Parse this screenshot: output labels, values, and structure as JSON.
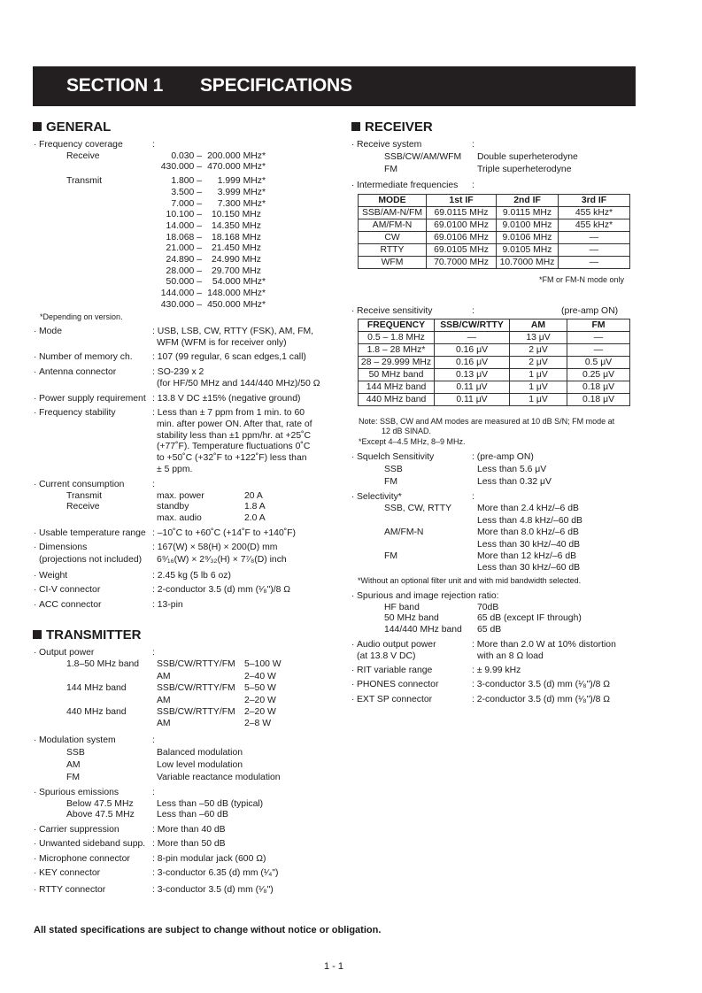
{
  "header": {
    "section": "SECTION 1",
    "title": "SPECIFICATIONS"
  },
  "general": {
    "heading": "GENERAL",
    "items": [
      {
        "rows": [
          {
            "k": "Frequency coverage",
            "v": ":"
          },
          {
            "k": "Receive",
            "r": [
              "0.030 –",
              "200.000 MHz*"
            ]
          },
          {
            "r": [
              "430.000 –",
              "470.000 MHz*"
            ]
          },
          {
            "k": "Transmit",
            "r": [
              "1.800 –",
              "1.999 MHz*"
            ]
          },
          {
            "r": [
              "3.500 –",
              "3.999 MHz*"
            ]
          },
          {
            "r": [
              "7.000 –",
              "7.300 MHz*"
            ]
          },
          {
            "r": [
              "10.100 –",
              "10.150 MHz"
            ]
          },
          {
            "r": [
              "14.000 –",
              "14.350 MHz"
            ]
          },
          {
            "r": [
              "18.068 –",
              "18.168 MHz"
            ]
          },
          {
            "r": [
              "21.000 –",
              "21.450 MHz"
            ]
          },
          {
            "r": [
              "24.890 –",
              "24.990 MHz"
            ]
          },
          {
            "r": [
              "28.000 –",
              "29.700 MHz"
            ]
          },
          {
            "r": [
              "50.000 –",
              "54.000 MHz*"
            ]
          },
          {
            "r": [
              "144.000 –",
              "148.000 MHz*"
            ]
          },
          {
            "r": [
              "430.000 –",
              "450.000 MHz*"
            ]
          },
          {
            "note": "*Depending on version."
          }
        ]
      },
      {
        "rows": [
          {
            "k": "Mode",
            "v": ": USB, LSB, CW, RTTY (FSK), AM, FM,"
          },
          {
            "v": "WFM (WFM is for receiver only)"
          }
        ]
      },
      {
        "rows": [
          {
            "k": "Number of memory ch.",
            "v": ": 107 (99 regular, 6 scan edges,1 call)"
          }
        ]
      },
      {
        "rows": [
          {
            "k": "Antenna connector",
            "v": ": SO-239 x 2"
          },
          {
            "v": "(for HF/50 MHz and 144/440 MHz)/50 Ω"
          }
        ]
      },
      {
        "rows": [
          {
            "k": "Power supply requirement",
            "v": ": 13.8 V DC ±15% (negative ground)"
          }
        ]
      },
      {
        "rows": [
          {
            "k": "Frequency stability",
            "v": ": Less than ± 7 ppm from 1 min. to 60"
          },
          {
            "v": "min. after power ON. After that, rate of"
          },
          {
            "v": "stability less than ±1 ppm/hr. at +25˚C"
          },
          {
            "v": "(+77˚F). Temperature fluctuations 0˚C"
          },
          {
            "v": "to +50˚C (+32˚F to +122˚F) less than"
          },
          {
            "v": "± 5 ppm."
          }
        ]
      },
      {
        "rows": [
          {
            "k": "Current consumption",
            "v": ":"
          },
          {
            "k": "Transmit",
            "v": "max. power",
            "v2": "20 A"
          },
          {
            "k": "Receive",
            "v": "standby",
            "v2": "1.8 A"
          },
          {
            "v": "max. audio",
            "v2": "2.0 A"
          }
        ]
      },
      {
        "rows": [
          {
            "k": "Usable temperature range",
            "v": ": –10˚C to +60˚C (+14˚F to +140˚F)"
          }
        ]
      },
      {
        "rows": [
          {
            "k": "Dimensions",
            "v": ": 167(W) × 58(H) × 200(D) mm"
          },
          {
            "k": "(projections not included)",
            "main": true,
            "v": "6⁹⁄₁₆(W) × 2⁹⁄₃₂(H) × 7⁷⁄₈(D) inch"
          }
        ]
      },
      {
        "rows": [
          {
            "k": "Weight",
            "v": ": 2.45 kg (5 lb 6 oz)"
          }
        ]
      },
      {
        "rows": [
          {
            "k": "CI-V connector",
            "v": ": 2-conductor 3.5 (d) mm (¹⁄₈\")/8 Ω"
          }
        ]
      },
      {
        "rows": [
          {
            "k": "ACC connector",
            "v": ": 13-pin"
          }
        ]
      }
    ]
  },
  "transmitter": {
    "heading": "TRANSMITTER",
    "items": [
      {
        "rows": [
          {
            "k": "Output power",
            "v": ":"
          },
          {
            "k": "1.8–50 MHz band",
            "v": "SSB/CW/RTTY/FM",
            "v2": "5–100 W"
          },
          {
            "v": "AM",
            "v2": "2–40 W"
          },
          {
            "k": "144 MHz band",
            "v": "SSB/CW/RTTY/FM",
            "v2": "5–50 W"
          },
          {
            "v": "AM",
            "v2": "2–20 W"
          },
          {
            "k": "440 MHz band",
            "v": "SSB/CW/RTTY/FM",
            "v2": "2–20 W"
          },
          {
            "v": "AM",
            "v2": "2–8 W"
          }
        ]
      },
      {
        "rows": [
          {
            "k": "Modulation system",
            "v": ":"
          },
          {
            "k": "SSB",
            "v": "Balanced modulation"
          },
          {
            "k": "AM",
            "v": "Low level modulation"
          },
          {
            "k": "FM",
            "v": "Variable reactance modulation"
          }
        ]
      },
      {
        "rows": [
          {
            "k": "Spurious emissions",
            "v": ":"
          },
          {
            "k": "Below 47.5 MHz",
            "v": "Less than –50 dB (typical)"
          },
          {
            "k": "Above 47.5 MHz",
            "v": "Less than –60 dB"
          }
        ]
      },
      {
        "rows": [
          {
            "k": "Carrier suppression",
            "v": ": More than 40 dB"
          }
        ]
      },
      {
        "rows": [
          {
            "k": "Unwanted sideband supp.",
            "v": ": More than 50 dB"
          }
        ]
      },
      {
        "rows": [
          {
            "k": "Microphone connector",
            "v": ": 8-pin modular jack (600 Ω)"
          }
        ]
      },
      {
        "rows": [
          {
            "k": "KEY connector",
            "v": ": 3-conductor 6.35 (d) mm (¹⁄₄\")"
          }
        ]
      },
      {
        "rows": [
          {
            "k": "RTTY connector",
            "v": ": 3-conductor 3.5 (d) mm (¹⁄₈\")"
          }
        ]
      }
    ]
  },
  "receiver": {
    "heading": "RECEIVER",
    "items_a": [
      {
        "rows": [
          {
            "k": "Receive system",
            "v": ":"
          },
          {
            "k": "SSB/CW/AM/WFM",
            "v": "Double superheterodyne"
          },
          {
            "k": "FM",
            "v": "Triple superheterodyne"
          }
        ]
      },
      {
        "rows": [
          {
            "k": "Intermediate frequencies",
            "v": ":"
          }
        ]
      },
      {
        "rows": [
          {
            "k": "Receive sensitivity",
            "v": ":",
            "v3": "(pre-amp ON)"
          }
        ]
      }
    ],
    "if_table": {
      "headers": [
        "MODE",
        "1st IF",
        "2nd IF",
        "3rd IF"
      ],
      "rows": [
        [
          "SSB/AM-N/FM",
          "69.0115 MHz",
          "9.0115 MHz",
          "455 kHz*"
        ],
        [
          "AM/FM-N",
          "69.0100 MHz",
          "9.0100 MHz",
          "455 kHz*"
        ],
        [
          "CW",
          "69.0106 MHz",
          "9.0106 MHz",
          "—"
        ],
        [
          "RTTY",
          "69.0105 MHz",
          "9.0105 MHz",
          "—"
        ],
        [
          "WFM",
          "70.7000 MHz",
          "10.7000 MHz",
          "—"
        ]
      ],
      "note": "*FM or FM-N mode only"
    },
    "sens_table": {
      "headers": [
        "FREQUENCY",
        "SSB/CW/RTTY",
        "AM",
        "FM"
      ],
      "rows": [
        [
          "0.5 – 1.8 MHz",
          "—",
          "13 μV",
          "—"
        ],
        [
          "1.8 – 28 MHz*",
          "0.16 μV",
          "2 μV",
          "—"
        ],
        [
          "28 – 29.999 MHz",
          "0.16 μV",
          "2 μV",
          "0.5 μV"
        ],
        [
          "50 MHz band",
          "0.13 μV",
          "1 μV",
          "0.25 μV"
        ],
        [
          "144 MHz band",
          "0.11 μV",
          "1 μV",
          "0.18 μV"
        ],
        [
          "440 MHz band",
          "0.11 μV",
          "1 μV",
          "0.18 μV"
        ]
      ],
      "notes": [
        "Note: SSB, CW and AM modes are measured at 10 dB S/N; FM mode at",
        "12 dB SINAD.",
        "*Except 4–4.5 MHz, 8–9 MHz."
      ]
    },
    "items_b": [
      {
        "rows": [
          {
            "k": "Squelch Sensitivity",
            "v": ": (pre-amp ON)"
          },
          {
            "k": "SSB",
            "v": "Less than 5.6 μV"
          },
          {
            "k": "FM",
            "v": "Less than 0.32 μV"
          }
        ]
      },
      {
        "rows": [
          {
            "k": "Selectivity*",
            "v": ":"
          },
          {
            "k": "SSB, CW, RTTY",
            "v": "More than 2.4 kHz/–6 dB"
          },
          {
            "v": "Less than 4.8 kHz/–60 dB"
          },
          {
            "k": "AM/FM-N",
            "v": "More than 8.0 kHz/–6 dB"
          },
          {
            "v": "Less than 30 kHz/–40 dB"
          },
          {
            "k": "FM",
            "v": "More than 12 kHz/–6 dB"
          },
          {
            "v": "Less than 30 kHz/–60 dB"
          },
          {
            "note": "*Without an optional filter unit and with mid bandwidth selected."
          }
        ]
      },
      {
        "rows": [
          {
            "k": "Spurious and image rejection ratio:"
          },
          {
            "k": "HF band",
            "v": "70dB"
          },
          {
            "k": "50 MHz band",
            "v": "65 dB (except IF through)"
          },
          {
            "k": "144/440 MHz band",
            "v": "65 dB"
          }
        ]
      },
      {
        "rows": [
          {
            "k": "Audio output power",
            "v": ": More than 2.0  W at 10% distortion"
          },
          {
            "k": "(at 13.8 V DC)",
            "main": true,
            "v": "with an 8 Ω load"
          }
        ]
      },
      {
        "rows": [
          {
            "k": "RIT variable range",
            "v": ": ± 9.99 kHz"
          }
        ]
      },
      {
        "rows": [
          {
            "k": "PHONES connector",
            "v": ": 3-conductor 3.5 (d) mm (¹⁄₈\")/8 Ω"
          }
        ]
      },
      {
        "rows": [
          {
            "k": "EXT SP connector",
            "v": ": 2-conductor 3.5 (d) mm (¹⁄₈\")/8 Ω"
          }
        ]
      }
    ]
  },
  "footer": {
    "disclaimer": "All stated specifications are subject to change without notice or obligation.",
    "page_number": "1 - 1"
  }
}
